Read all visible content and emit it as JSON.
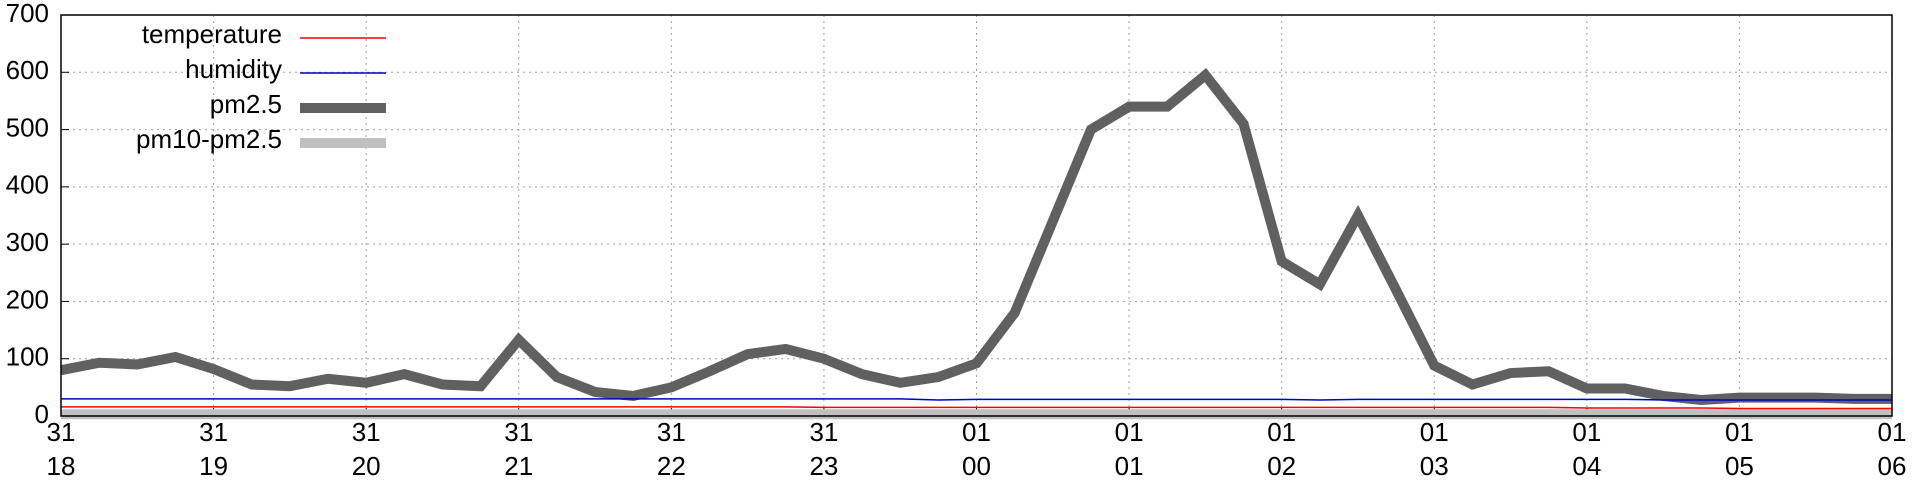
{
  "chart_data": {
    "type": "line",
    "x": [
      18,
      18.25,
      18.5,
      18.75,
      19,
      19.25,
      19.5,
      19.75,
      20,
      20.25,
      20.5,
      20.75,
      21,
      21.25,
      21.5,
      21.75,
      22,
      22.25,
      22.5,
      22.75,
      23,
      23.25,
      23.5,
      23.75,
      24,
      24.25,
      24.5,
      24.75,
      25,
      25.25,
      25.5,
      25.75,
      26,
      26.25,
      26.5,
      26.75,
      27,
      27.25,
      27.5,
      27.75,
      28,
      28.25,
      28.5,
      28.75,
      29,
      29.25,
      29.5,
      29.75,
      30
    ],
    "series": [
      {
        "name": "temperature",
        "color": "#ff0000",
        "width": 1.5,
        "values": [
          16,
          16,
          16,
          16,
          16,
          16,
          16,
          16,
          16,
          16,
          16,
          16,
          16,
          16,
          16,
          16,
          16,
          16,
          16,
          16,
          15,
          15,
          15,
          15,
          15,
          15,
          15,
          15,
          15,
          15,
          15,
          15,
          15,
          15,
          15,
          15,
          15,
          15,
          15,
          15,
          14,
          14,
          14,
          14,
          13,
          13,
          13,
          13,
          13
        ]
      },
      {
        "name": "humidity",
        "color": "#0000cc",
        "width": 1.5,
        "values": [
          30,
          30,
          30,
          30,
          30,
          30,
          30,
          30,
          30,
          30,
          30,
          30,
          30,
          30,
          30,
          30,
          30,
          30,
          30,
          30,
          30,
          30,
          30,
          28,
          29,
          29,
          29,
          29,
          29,
          29,
          29,
          29,
          29,
          28,
          29,
          29,
          29,
          29,
          29,
          29,
          29,
          29,
          28,
          28,
          28,
          28,
          28,
          28,
          28
        ]
      },
      {
        "name": "pm2.5",
        "color": "#606060",
        "width": 10,
        "values": [
          80,
          93,
          90,
          103,
          82,
          55,
          52,
          65,
          58,
          73,
          55,
          52,
          133,
          68,
          42,
          35,
          50,
          78,
          108,
          117,
          100,
          73,
          58,
          68,
          92,
          180,
          340,
          500,
          540,
          540,
          595,
          510,
          270,
          230,
          350,
          220,
          88,
          55,
          75,
          78,
          48,
          48,
          35,
          28,
          32,
          32,
          32,
          30,
          30
        ]
      },
      {
        "name": "pm10-pm2.5",
        "color": "#c0c0c0",
        "width": 10,
        "values": [
          3,
          3,
          3,
          3,
          3,
          3,
          3,
          3,
          3,
          3,
          3,
          3,
          3,
          3,
          3,
          3,
          3,
          3,
          3,
          3,
          3,
          3,
          3,
          3,
          3,
          3,
          3,
          3,
          3,
          3,
          3,
          3,
          3,
          3,
          3,
          3,
          3,
          3,
          3,
          3,
          3,
          3,
          3,
          3,
          3,
          3,
          3,
          3,
          3
        ]
      }
    ],
    "xlim": [
      18,
      30
    ],
    "xticks": [
      {
        "value": 18,
        "label": [
          "31",
          "18"
        ]
      },
      {
        "value": 19,
        "label": [
          "31",
          "19"
        ]
      },
      {
        "value": 20,
        "label": [
          "31",
          "20"
        ]
      },
      {
        "value": 21,
        "label": [
          "31",
          "21"
        ]
      },
      {
        "value": 22,
        "label": [
          "31",
          "22"
        ]
      },
      {
        "value": 23,
        "label": [
          "31",
          "23"
        ]
      },
      {
        "value": 24,
        "label": [
          "01",
          "00"
        ]
      },
      {
        "value": 25,
        "label": [
          "01",
          "01"
        ]
      },
      {
        "value": 26,
        "label": [
          "01",
          "02"
        ]
      },
      {
        "value": 27,
        "label": [
          "01",
          "03"
        ]
      },
      {
        "value": 28,
        "label": [
          "01",
          "04"
        ]
      },
      {
        "value": 29,
        "label": [
          "01",
          "05"
        ]
      },
      {
        "value": 30,
        "label": [
          "01",
          "06"
        ]
      }
    ],
    "ylim": [
      0,
      700
    ],
    "yticks": [
      0,
      100,
      200,
      300,
      400,
      500,
      600,
      700
    ],
    "grid": true,
    "legend": "top-left"
  }
}
